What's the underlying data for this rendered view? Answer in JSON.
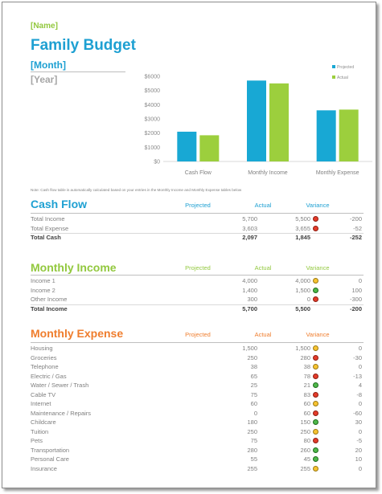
{
  "header": {
    "name": "[Name]",
    "title": "Family Budget",
    "month": "[Month]",
    "year": "[Year]"
  },
  "colors": {
    "projected": "#18a8d4",
    "actual": "#9ccf3d",
    "cash_flow_title": "#1ea0d2",
    "income_title": "#92c83e",
    "expense_title": "#ef7d2d",
    "indicator_red": "#e43b2a",
    "indicator_yellow": "#f7c331",
    "indicator_green": "#4eb84a"
  },
  "chart_data": {
    "type": "bar",
    "categories": [
      "Cash Flow",
      "Monthly Income",
      "Monthly Expense"
    ],
    "series": [
      {
        "name": "Projected",
        "values": [
          2097,
          5700,
          3603
        ]
      },
      {
        "name": "Actual",
        "values": [
          1845,
          5500,
          3655
        ]
      }
    ],
    "ylim": [
      0,
      6000
    ],
    "yticks": [
      "$0",
      "$1000",
      "$2000",
      "$3000",
      "$4000",
      "$5000",
      "$6000"
    ],
    "legend": "top-right",
    "grid": false
  },
  "note": "Note: Cash flow table is automatically calculated based on your entries in the Monthly Income and Monthly Expense tables below",
  "columns": {
    "projected": "Projected",
    "actual": "Actual",
    "variance": "Variance"
  },
  "cash_flow": {
    "title": "Cash Flow",
    "rows": [
      {
        "label": "Total Income",
        "projected": "5,700",
        "actual": "5,500",
        "indicator": "red",
        "variance": "-200"
      },
      {
        "label": "Total Expense",
        "projected": "3,603",
        "actual": "3,655",
        "indicator": "red",
        "variance": "-52"
      }
    ],
    "total": {
      "label": "Total Cash",
      "projected": "2,097",
      "actual": "1,845",
      "variance": "-252"
    }
  },
  "income": {
    "title": "Monthly Income",
    "rows": [
      {
        "label": "Income 1",
        "projected": "4,000",
        "actual": "4,000",
        "indicator": "yellow",
        "variance": "0"
      },
      {
        "label": "Income 2",
        "projected": "1,400",
        "actual": "1,500",
        "indicator": "green",
        "variance": "100"
      },
      {
        "label": "Other Income",
        "projected": "300",
        "actual": "0",
        "indicator": "red",
        "variance": "-300"
      }
    ],
    "total": {
      "label": "Total Income",
      "projected": "5,700",
      "actual": "5,500",
      "variance": "-200"
    }
  },
  "expense": {
    "title": "Monthly Expense",
    "rows": [
      {
        "label": "Housing",
        "projected": "1,500",
        "actual": "1,500",
        "indicator": "yellow",
        "variance": "0"
      },
      {
        "label": "Groceries",
        "projected": "250",
        "actual": "280",
        "indicator": "red",
        "variance": "-30"
      },
      {
        "label": "Telephone",
        "projected": "38",
        "actual": "38",
        "indicator": "yellow",
        "variance": "0"
      },
      {
        "label": "Electric / Gas",
        "projected": "65",
        "actual": "78",
        "indicator": "red",
        "variance": "-13"
      },
      {
        "label": "Water / Sewer / Trash",
        "projected": "25",
        "actual": "21",
        "indicator": "green",
        "variance": "4"
      },
      {
        "label": "Cable TV",
        "projected": "75",
        "actual": "83",
        "indicator": "red",
        "variance": "-8"
      },
      {
        "label": "Internet",
        "projected": "60",
        "actual": "60",
        "indicator": "yellow",
        "variance": "0"
      },
      {
        "label": "Maintenance / Repairs",
        "projected": "0",
        "actual": "60",
        "indicator": "red",
        "variance": "-60"
      },
      {
        "label": "Childcare",
        "projected": "180",
        "actual": "150",
        "indicator": "green",
        "variance": "30"
      },
      {
        "label": "Tuition",
        "projected": "250",
        "actual": "250",
        "indicator": "yellow",
        "variance": "0"
      },
      {
        "label": "Pets",
        "projected": "75",
        "actual": "80",
        "indicator": "red",
        "variance": "-5"
      },
      {
        "label": "Transportation",
        "projected": "280",
        "actual": "260",
        "indicator": "green",
        "variance": "20"
      },
      {
        "label": "Personal Care",
        "projected": "55",
        "actual": "45",
        "indicator": "green",
        "variance": "10"
      },
      {
        "label": "Insurance",
        "projected": "255",
        "actual": "255",
        "indicator": "yellow",
        "variance": "0"
      }
    ]
  }
}
